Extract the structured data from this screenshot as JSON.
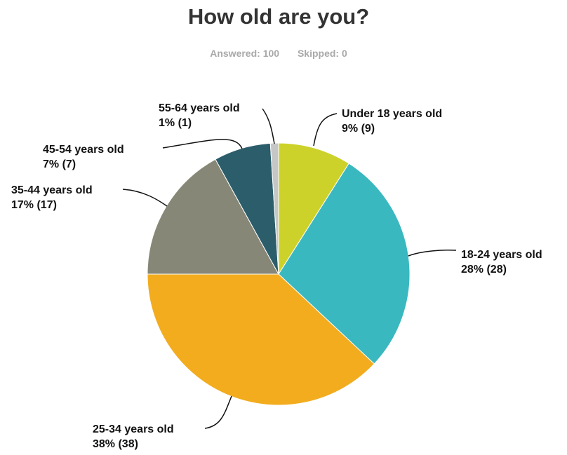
{
  "chart_data": {
    "type": "pie",
    "title": "How old are you?",
    "summary": {
      "answered": "Answered: 100",
      "skipped": "Skipped: 0"
    },
    "slices": [
      {
        "label": "Under 18 years old",
        "value_label": "9% (9)",
        "percent": 9,
        "count": 9,
        "color": "#cdd22a"
      },
      {
        "label": "18-24 years old",
        "value_label": "28% (28)",
        "percent": 28,
        "count": 28,
        "color": "#3ab8c0"
      },
      {
        "label": "25-34 years old",
        "value_label": "38% (38)",
        "percent": 38,
        "count": 38,
        "color": "#f2ac1e"
      },
      {
        "label": "35-44 years old",
        "value_label": "17% (17)",
        "percent": 17,
        "count": 17,
        "color": "#868776"
      },
      {
        "label": "45-54 years old",
        "value_label": "7% (7)",
        "percent": 7,
        "count": 7,
        "color": "#2c5d6b"
      },
      {
        "label": "55-64 years old",
        "value_label": "1% (1)",
        "percent": 1,
        "count": 1,
        "color": "#c5c7c6"
      }
    ]
  }
}
